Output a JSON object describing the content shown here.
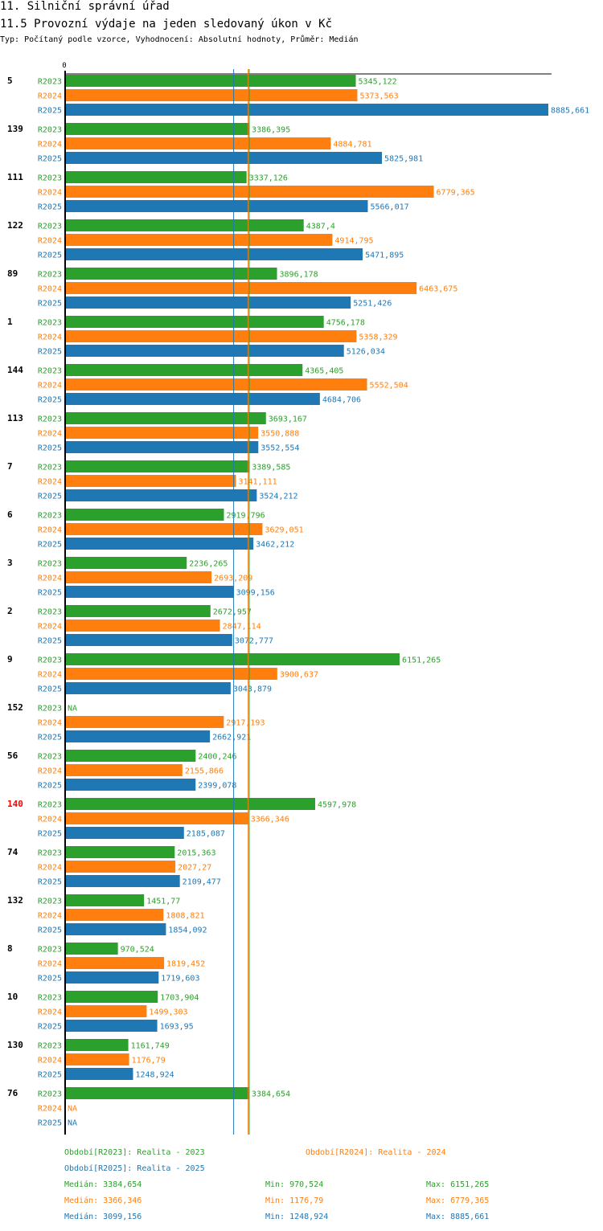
{
  "header": {
    "title": "11. Silniční správní úřad",
    "subtitle": "11.5 Provozní výdaje na jeden sledovaný úkon v Kč",
    "info": "Typ: Počítaný podle vzorce, Vyhodnocení: Absolutní hodnoty, Průměr: Medián"
  },
  "colors": {
    "R2023": "#2ca02c",
    "R2024": "#ff7f0e",
    "R2025": "#1f77b4",
    "highlight": "#ff0000",
    "text": "#000000"
  },
  "chart_data": {
    "type": "bar",
    "orientation": "horizontal",
    "title": "11.5 Provozní výdaje na jeden sledovaný úkon v Kč",
    "axis_zero_label": "0",
    "xlim": [
      0,
      8885.661
    ],
    "highlight_category": "140",
    "na_label": "NA",
    "categories": [
      "5",
      "139",
      "111",
      "122",
      "89",
      "1",
      "144",
      "113",
      "7",
      "6",
      "3",
      "2",
      "9",
      "152",
      "56",
      "140",
      "74",
      "132",
      "8",
      "10",
      "130",
      "76"
    ],
    "series": [
      {
        "name": "R2023",
        "color": "#2ca02c",
        "values": [
          5345.122,
          3386.395,
          3337.126,
          4387.4,
          3896.178,
          4756.178,
          4365.405,
          3693.167,
          3389.585,
          2919.796,
          2236.265,
          2672.957,
          6151.265,
          null,
          2400.246,
          4597.978,
          2015.363,
          1451.77,
          970.524,
          1703.904,
          1161.749,
          3384.654
        ],
        "labels": [
          "5345,122",
          "3386,395",
          "3337,126",
          "4387,4",
          "3896,178",
          "4756,178",
          "4365,405",
          "3693,167",
          "3389,585",
          "2919,796",
          "2236,265",
          "2672,957",
          "6151,265",
          "NA",
          "2400,246",
          "4597,978",
          "2015,363",
          "1451,77",
          "970,524",
          "1703,904",
          "1161,749",
          "3384,654"
        ]
      },
      {
        "name": "R2024",
        "color": "#ff7f0e",
        "values": [
          5373.563,
          4884.781,
          6779.365,
          4914.795,
          6463.675,
          5358.329,
          5552.504,
          3550.888,
          3141.111,
          3629.051,
          2693.209,
          2847.114,
          3900.637,
          2917.193,
          2155.866,
          3366.346,
          2027.27,
          1808.821,
          1819.452,
          1499.303,
          1176.79,
          null
        ],
        "labels": [
          "5373,563",
          "4884,781",
          "6779,365",
          "4914,795",
          "6463,675",
          "5358,329",
          "5552,504",
          "3550,888",
          "3141,111",
          "3629,051",
          "2693,209",
          "2847,114",
          "3900,637",
          "2917,193",
          "2155,866",
          "3366,346",
          "2027,27",
          "1808,821",
          "1819,452",
          "1499,303",
          "1176,79",
          "NA"
        ]
      },
      {
        "name": "R2025",
        "color": "#1f77b4",
        "values": [
          8885.661,
          5825.981,
          5566.017,
          5471.895,
          5251.426,
          5126.034,
          4684.706,
          3552.554,
          3524.212,
          3462.212,
          3099.156,
          3072.777,
          3043.879,
          2662.921,
          2399.078,
          2185.087,
          2109.477,
          1854.092,
          1719.603,
          1693.95,
          1248.924,
          null
        ],
        "labels": [
          "8885,661",
          "5825,981",
          "5566,017",
          "5471,895",
          "5251,426",
          "5126,034",
          "4684,706",
          "3552,554",
          "3524,212",
          "3462,212",
          "3099,156",
          "3072,777",
          "3043,879",
          "2662,921",
          "2399,078",
          "2185,087",
          "2109,477",
          "1854,092",
          "1719,603",
          "1693,95",
          "1248,924",
          "NA"
        ]
      }
    ],
    "median_lines": [
      {
        "series": "R2023",
        "value": 3384.654
      },
      {
        "series": "R2024",
        "value": 3366.346
      },
      {
        "series": "R2025",
        "value": 3099.156
      }
    ]
  },
  "legend": {
    "r2023": "Období[R2023]: Realita - 2023",
    "r2024": "Období[R2024]: Realita - 2024",
    "r2025": "Období[R2025]: Realita - 2025",
    "stats": [
      {
        "median": "Medián: 3384,654",
        "min": "Min: 970,524",
        "max": "Max: 6151,265"
      },
      {
        "median": "Medián: 3366,346",
        "min": "Min: 1176,79",
        "max": "Max: 6779,365"
      },
      {
        "median": "Medián: 3099,156",
        "min": "Min: 1248,924",
        "max": "Max: 8885,661"
      }
    ]
  }
}
